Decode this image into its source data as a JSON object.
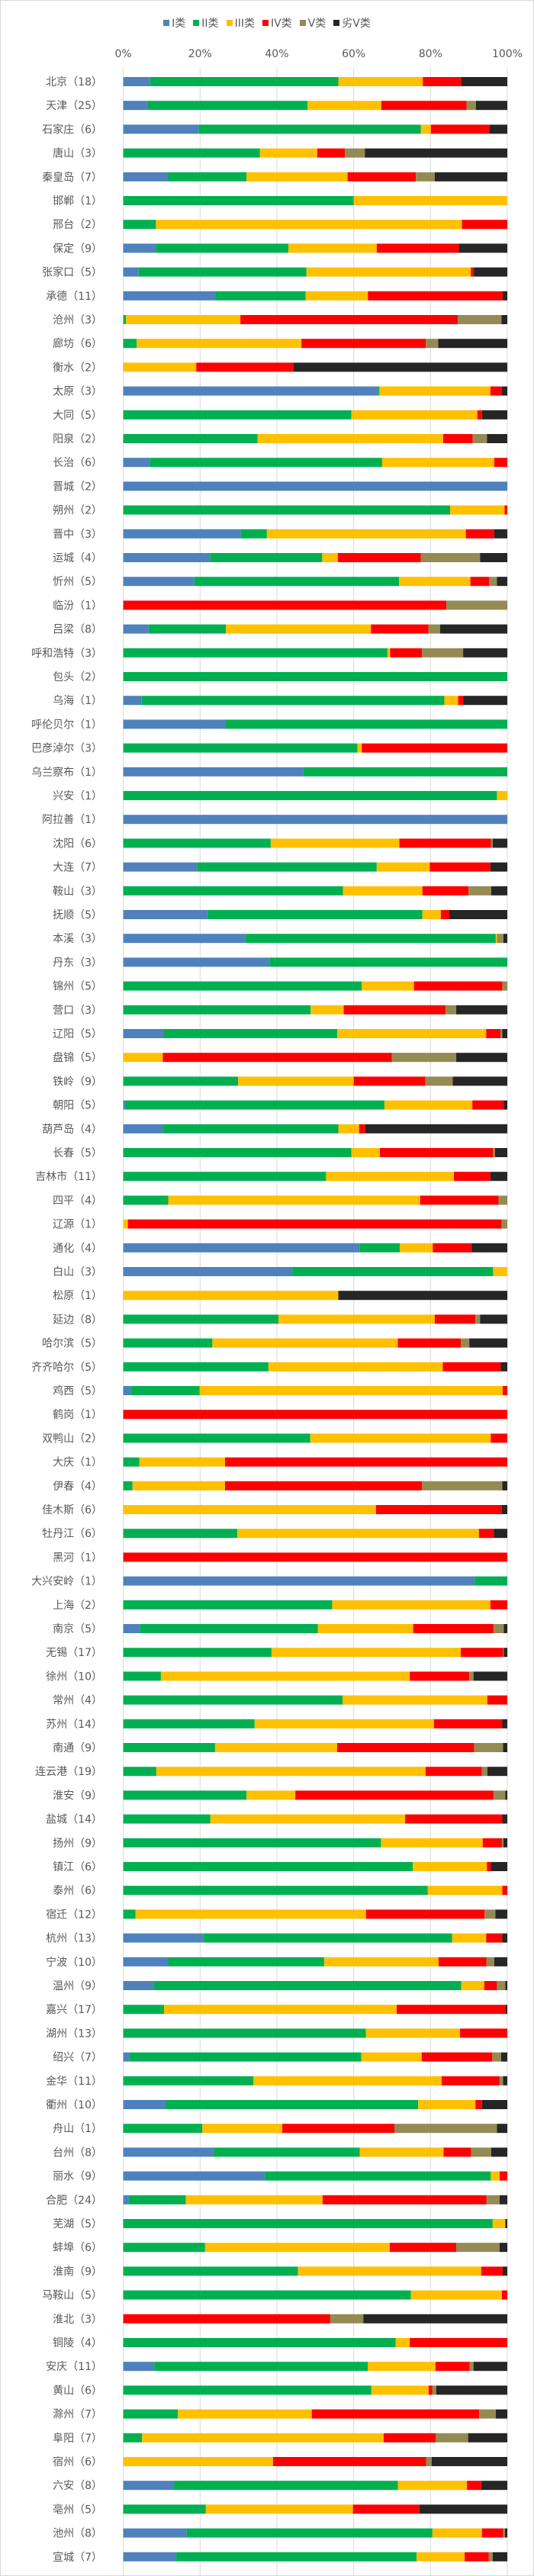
{
  "chart_data": {
    "type": "bar",
    "orientation": "horizontal",
    "stacked": "percent",
    "xlim": [
      0,
      100
    ],
    "x_ticks": [
      "0%",
      "20%",
      "40%",
      "60%",
      "80%",
      "100%"
    ],
    "grid": "vertical",
    "legend_position": "top",
    "categories": [
      "北京（18）",
      "天津（25）",
      "石家庄（6）",
      "唐山（3）",
      "秦皇岛（7）",
      "邯郸（1）",
      "邢台（2）",
      "保定（9）",
      "张家口（5）",
      "承德（11）",
      "沧州（3）",
      "廊坊（6）",
      "衡水（2）",
      "太原（3）",
      "大同（5）",
      "阳泉（2）",
      "长治（6）",
      "晋城（2）",
      "朔州（2）",
      "晋中（3）",
      "运城（4）",
      "忻州（5）",
      "临汾（1）",
      "吕梁（8）",
      "呼和浩特（3）",
      "包头（2）",
      "乌海（1）",
      "呼伦贝尔（1）",
      "巴彦淖尔（3）",
      "乌兰察布（1）",
      "兴安（1）",
      "阿拉善（1）",
      "沈阳（6）",
      "大连（7）",
      "鞍山（3）",
      "抚顺（5）",
      "本溪（3）",
      "丹东（3）",
      "锦州（5）",
      "营口（3）",
      "辽阳（5）",
      "盘锦（5）",
      "铁岭（9）",
      "朝阳（5）",
      "葫芦岛（4）",
      "长春（5）",
      "吉林市（11）",
      "四平（4）",
      "辽源（1）",
      "通化（4）",
      "白山（3）",
      "松原（1）",
      "延边（8）",
      "哈尔滨（5）",
      "齐齐哈尔（5）",
      "鸡西（5）",
      "鹤岗（1）",
      "双鸭山（2）",
      "大庆（1）",
      "伊春（4）",
      "佳木斯（6）",
      "牡丹江（6）",
      "黑河（1）",
      "大兴安岭（1）",
      "上海（2）",
      "南京（5）",
      "无锡（17）",
      "徐州（10）",
      "常州（4）",
      "苏州（14）",
      "南通（9）",
      "连云港（19）",
      "淮安（9）",
      "盐城（14）",
      "扬州（9）",
      "镇江（6）",
      "泰州（6）",
      "宿迁（12）",
      "杭州（13）",
      "宁波（10）",
      "温州（9）",
      "嘉兴（17）",
      "湖州（13）",
      "绍兴（7）",
      "金华（11）",
      "衢州（10）",
      "舟山（1）",
      "台州（8）",
      "丽水（9）",
      "合肥（24）",
      "芜湖（5）",
      "蚌埠（6）",
      "淮南（9）",
      "马鞍山（5）",
      "淮北（3）",
      "铜陵（4）",
      "安庆（11）",
      "黄山（6）",
      "滁州（7）",
      "阜阳（7）",
      "宿州（6）",
      "六安（8）",
      "亳州（5）",
      "池州（8）",
      "宣城（7）"
    ],
    "series": [
      {
        "name": "I类",
        "color": "#4f81bd",
        "values": [
          7,
          6.2,
          19.6,
          0,
          11.7,
          0,
          0,
          8.5,
          4,
          23.9,
          0,
          0,
          0,
          66.3,
          0,
          0,
          6.9,
          100,
          0,
          30.6,
          22.6,
          18.5,
          0,
          6.6,
          0,
          0,
          4.8,
          26.7,
          0,
          46.8,
          0,
          100,
          0,
          19.3,
          0,
          21.9,
          31.8,
          38.2,
          0,
          0,
          10.4,
          0,
          0,
          0.5,
          10.3,
          0,
          0,
          0,
          0,
          61.5,
          44,
          0,
          0,
          0,
          0,
          1.9,
          0,
          0,
          0,
          0,
          0,
          0,
          0,
          91.5,
          0,
          4.3,
          0,
          0,
          0,
          0,
          0,
          0,
          0,
          0,
          0,
          0,
          0,
          0,
          20.9,
          11.7,
          7.9,
          0,
          0,
          1.6,
          0,
          11,
          0,
          23.5,
          36.9,
          1.4,
          0,
          0,
          0,
          0,
          0,
          0,
          8.1,
          0,
          0,
          0,
          0,
          13.2,
          0,
          16.5,
          13.8
        ]
      },
      {
        "name": "II类",
        "color": "#00b050",
        "values": [
          49,
          41.8,
          57.9,
          35.6,
          20.4,
          60,
          8.5,
          34.5,
          43.7,
          23.6,
          0.7,
          3.5,
          0,
          0.4,
          59.4,
          35,
          60.5,
          0,
          85.1,
          6.8,
          29.2,
          53.3,
          0,
          20.1,
          68.8,
          100,
          78.8,
          73.3,
          61,
          53.2,
          97.3,
          0,
          38.4,
          46.7,
          57.2,
          56,
          65.2,
          61.8,
          62.1,
          48.8,
          45.3,
          0,
          29.9,
          67.5,
          45.7,
          59.4,
          52.8,
          11.7,
          0,
          10.5,
          52.3,
          0,
          40.4,
          23.2,
          37.8,
          18,
          0,
          48.7,
          4.2,
          2.4,
          0,
          29.7,
          0,
          8.5,
          54.4,
          46.4,
          38.6,
          9.8,
          57.1,
          34.2,
          23.9,
          8.6,
          32.1,
          22.7,
          67.1,
          75.4,
          79.3,
          3.2,
          64.7,
          40.6,
          80.1,
          10.6,
          63.2,
          60.4,
          33.9,
          65.8,
          20.6,
          38.1,
          58.8,
          14.9,
          96.2,
          21.3,
          45.5,
          74.9,
          0,
          70.9,
          55.6,
          64.6,
          14.2,
          4.9,
          0,
          58.3,
          21.5,
          64,
          62.6
        ]
      },
      {
        "name": "III类",
        "color": "#ffc000",
        "values": [
          22,
          19.2,
          2.6,
          14.9,
          26.3,
          40,
          79.7,
          23,
          42.8,
          16.2,
          29.8,
          42.9,
          19,
          28.9,
          32.8,
          48.3,
          29.2,
          0,
          14.2,
          51.8,
          4.1,
          18.6,
          0,
          37.8,
          0.7,
          0,
          3.6,
          0,
          1.1,
          0,
          2.7,
          0,
          33.5,
          13.8,
          20.7,
          4.8,
          0.3,
          0,
          13.6,
          8.6,
          38.8,
          10.3,
          30.1,
          22.9,
          5.4,
          7.4,
          33.3,
          65.6,
          1.2,
          8.6,
          3.7,
          56,
          40.7,
          48.3,
          45.4,
          78.9,
          0,
          47,
          22.3,
          24.1,
          65.8,
          62.9,
          0,
          0,
          41.2,
          24.8,
          49.3,
          64.8,
          37.7,
          46.7,
          31.8,
          70.1,
          12.7,
          50.7,
          26.5,
          19.3,
          19.4,
          60,
          8.9,
          29.8,
          6,
          60.6,
          24.5,
          15.7,
          49,
          14.9,
          20.8,
          21.8,
          2.3,
          35.6,
          3.3,
          48.1,
          47.7,
          23.7,
          0,
          3.7,
          17.6,
          14.9,
          34.9,
          62.9,
          39,
          18,
          38.3,
          12.9,
          12.5
        ]
      },
      {
        "name": "IV类",
        "color": "#ff0000",
        "values": [
          10,
          22.2,
          15.2,
          7.2,
          17.8,
          0,
          11.8,
          21.4,
          0.8,
          35.1,
          56.6,
          32.4,
          25.3,
          3,
          1.2,
          7.7,
          3.4,
          0,
          0.7,
          7.4,
          21.6,
          4.9,
          84.1,
          15,
          8.3,
          0,
          1.3,
          0,
          37.9,
          0,
          0,
          0,
          23.9,
          15.8,
          12,
          2.2,
          0,
          0,
          23,
          26.5,
          3.7,
          59.6,
          18.7,
          8.2,
          1.6,
          29.5,
          9.5,
          20.4,
          97.3,
          10.1,
          0,
          0,
          10.6,
          16.4,
          15.1,
          1.2,
          100,
          4.3,
          73.5,
          51.3,
          32.8,
          3.9,
          100,
          0,
          4.4,
          20.9,
          11,
          15.5,
          5.2,
          17.8,
          35.7,
          14.7,
          51.6,
          25.3,
          5,
          1,
          1.3,
          30.9,
          4.2,
          12.5,
          3.3,
          28.4,
          12.3,
          18.4,
          15.1,
          1.7,
          29.2,
          7.2,
          2,
          42.7,
          0,
          17.3,
          5.6,
          1.4,
          53.9,
          25.4,
          8.9,
          1,
          43.6,
          13.6,
          39.9,
          3.7,
          17.3,
          5.5,
          6.3
        ]
      },
      {
        "name": "V类",
        "color": "#948a54",
        "values": [
          0,
          2.4,
          0,
          5.2,
          4.9,
          0,
          0,
          0,
          0,
          0,
          11.4,
          3.2,
          0,
          0,
          0,
          3.7,
          0,
          0,
          0,
          0,
          15.4,
          2,
          15.9,
          3,
          10.7,
          0,
          0,
          0,
          0,
          0,
          0,
          0,
          0.4,
          0,
          5.9,
          0,
          1.7,
          0,
          1.3,
          2.8,
          0.5,
          16.8,
          7.1,
          0,
          0,
          0.5,
          0,
          2.3,
          1.5,
          0,
          0,
          0,
          1.2,
          2.2,
          0,
          0,
          0,
          0,
          0,
          20.9,
          0,
          0,
          0,
          0,
          0,
          2.7,
          0.2,
          1.1,
          0,
          0,
          7.5,
          1.4,
          3.1,
          0,
          0.4,
          0,
          0,
          2.8,
          0,
          2,
          2.2,
          0,
          0,
          2.3,
          0.9,
          0,
          26.7,
          5.2,
          0,
          3.4,
          0,
          11.3,
          0,
          0,
          8.6,
          0,
          1,
          1,
          4.3,
          8.4,
          1.4,
          0,
          0,
          0.5,
          1
        ]
      },
      {
        "name": "劣V类",
        "color": "#262626",
        "values": [
          12,
          8.2,
          4.7,
          37.1,
          18.9,
          0,
          0,
          12.6,
          8.7,
          1.2,
          1.5,
          18,
          55.7,
          1.4,
          6.6,
          5.3,
          0,
          0,
          0,
          3.4,
          7.1,
          2.7,
          0,
          17.5,
          11.5,
          0,
          11.5,
          0,
          0,
          0,
          0,
          0,
          3.8,
          4.4,
          4.2,
          15.1,
          1,
          0,
          0,
          13.3,
          1.3,
          13.3,
          14.2,
          0.9,
          37,
          3.2,
          4.4,
          0,
          0,
          9.3,
          0,
          44,
          7.1,
          9.9,
          1.7,
          0,
          0,
          0,
          0,
          1.3,
          1.4,
          3.5,
          0,
          0,
          0,
          0.9,
          0.9,
          8.8,
          0,
          1.3,
          1.1,
          5.2,
          0.5,
          1.3,
          1,
          4.3,
          0,
          3.1,
          1.3,
          3.4,
          0.5,
          0.4,
          0,
          1.6,
          1.1,
          6.6,
          2.7,
          4.2,
          0,
          2,
          0.5,
          2,
          1.2,
          0,
          37.5,
          0,
          8.8,
          18.5,
          3,
          10.2,
          19.7,
          6.8,
          22.9,
          0.6,
          3.8
        ]
      }
    ]
  }
}
